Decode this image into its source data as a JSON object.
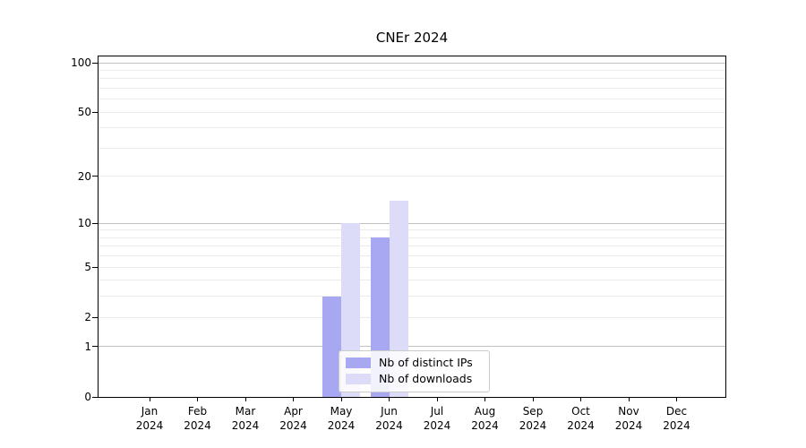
{
  "chart_data": {
    "type": "bar",
    "title": "CNEr 2024",
    "categories": [
      "Jan",
      "Feb",
      "Mar",
      "Apr",
      "May",
      "Jun",
      "Jul",
      "Aug",
      "Sep",
      "Oct",
      "Nov",
      "Dec"
    ],
    "year_label": "2024",
    "series": [
      {
        "name": "Nb of distinct IPs",
        "color": "#a8a8f2",
        "values": [
          0,
          0,
          0,
          0,
          3,
          8,
          0,
          0,
          0,
          0,
          0,
          0
        ]
      },
      {
        "name": "Nb of downloads",
        "color": "#dcdcf8",
        "values": [
          0,
          0,
          0,
          0,
          10,
          14,
          0,
          0,
          0,
          0,
          0,
          0
        ]
      }
    ],
    "yscale": "log1p",
    "ylim": [
      0,
      109
    ],
    "y_ticks": [
      0,
      1,
      2,
      5,
      10,
      20,
      50,
      100
    ],
    "y_major_gridlines": [
      1,
      10,
      100
    ],
    "y_minor_gridlines": [
      2,
      3,
      4,
      5,
      6,
      7,
      8,
      9,
      20,
      30,
      40,
      50,
      60,
      70,
      80,
      90
    ],
    "grid": true,
    "legend_position": "lower center",
    "colors": {
      "spine": "#000000",
      "text": "#000000",
      "major_grid": "#c0c0c0",
      "minor_grid": "#ebebeb",
      "legend_border": "#cccccc",
      "background": "#ffffff"
    }
  }
}
